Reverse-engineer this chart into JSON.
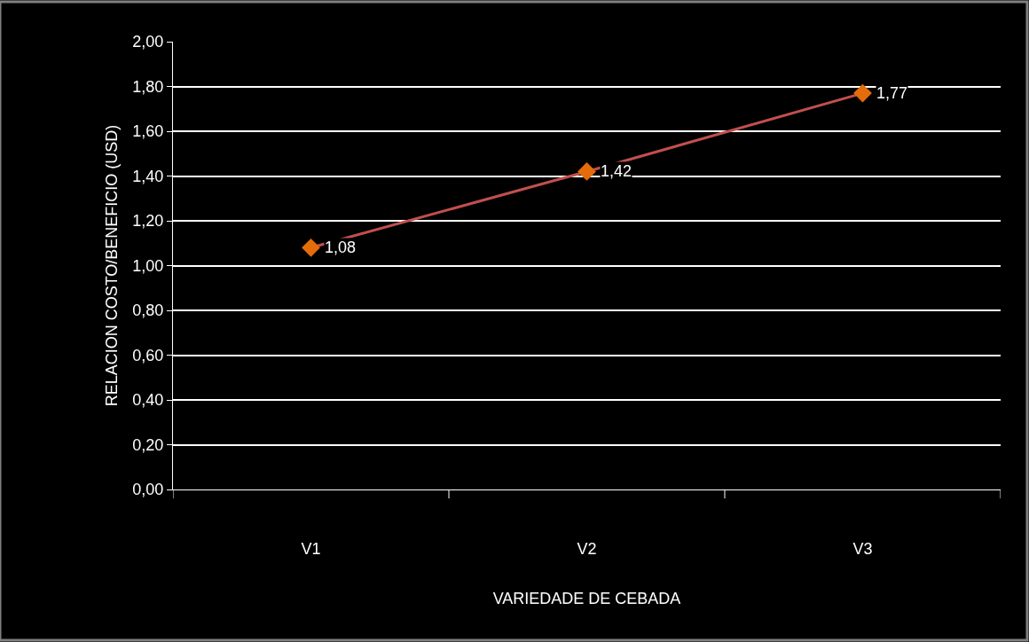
{
  "chart_data": {
    "type": "line",
    "xlabel": "VARIEDADE DE CEBADA",
    "ylabel": "RELACION COSTO/BENEFICIO (USD)",
    "categories": [
      "V1",
      "V2",
      "V3"
    ],
    "series": [
      {
        "color": "#c0504d",
        "colors": [
          "#e46c0a",
          "#e46c0a",
          "#e46c0a"
        ],
        "values": [
          1.08,
          1.42,
          1.77
        ],
        "value_labels": [
          "1,08",
          "1,42",
          "1,77"
        ]
      }
    ],
    "ylim": [
      0,
      2
    ],
    "yticks": [
      {
        "value": 0,
        "label": "0,00"
      },
      {
        "value": 0.2,
        "label": "0,20"
      },
      {
        "value": 0.4,
        "label": "0,40"
      },
      {
        "value": 0.6,
        "label": "0,60"
      },
      {
        "value": 0.8,
        "label": "0,80"
      },
      {
        "value": 1.0,
        "label": "1,00"
      },
      {
        "value": 1.2,
        "label": "1,20"
      },
      {
        "value": 1.4,
        "label": "1,40"
      },
      {
        "value": 1.6,
        "label": "1,60"
      },
      {
        "value": 1.8,
        "label": "1,80"
      },
      {
        "value": 2.0,
        "label": "2,00"
      }
    ],
    "grid": "y",
    "marker": "diamond",
    "line_style": "solid"
  }
}
